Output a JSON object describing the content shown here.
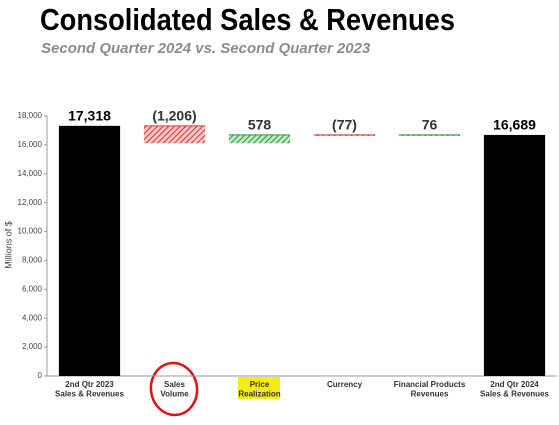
{
  "chart_data": {
    "type": "waterfall",
    "title": "Consolidated Sales & Revenues",
    "subtitle": "Second Quarter 2024 vs. Second Quarter 2023",
    "y_label": "Millions of $",
    "categories": [
      [
        "2nd Qtr 2023",
        "Sales & Revenues"
      ],
      [
        "Sales",
        "Volume"
      ],
      [
        "Price",
        "Realization"
      ],
      [
        "Currency"
      ],
      [
        "Financial Products",
        "Revenues"
      ],
      [
        "2nd Qtr 2024",
        "Sales & Revenues"
      ]
    ],
    "measure": [
      "total",
      "relative",
      "relative",
      "relative",
      "relative",
      "total"
    ],
    "values": [
      17318,
      -1206,
      578,
      -77,
      76,
      16689
    ],
    "value_labels": [
      "17,318",
      "(1,206)",
      "578",
      "(77)",
      "76",
      "16,689"
    ],
    "colors": [
      "#000000",
      "#e0393a",
      "#2a9a3a",
      "#e0393a",
      "#2a9a3a",
      "#000000"
    ],
    "ylim": [
      0,
      18000
    ],
    "yticks": [
      0,
      {
        "value": 2000,
        "label": "2,000"
      },
      {
        "value": 4000,
        "label": "4,000"
      },
      {
        "value": 6000,
        "label": "6,000"
      },
      {
        "value": 8000,
        "label": "8,000"
      },
      {
        "value": 10000,
        "label": "10,000"
      },
      {
        "value": 12000,
        "label": "12,000"
      },
      {
        "value": 14000,
        "label": "14,000"
      },
      {
        "value": 16000,
        "label": "16,000"
      },
      {
        "value": 18000,
        "label": "18,000"
      }
    ]
  }
}
